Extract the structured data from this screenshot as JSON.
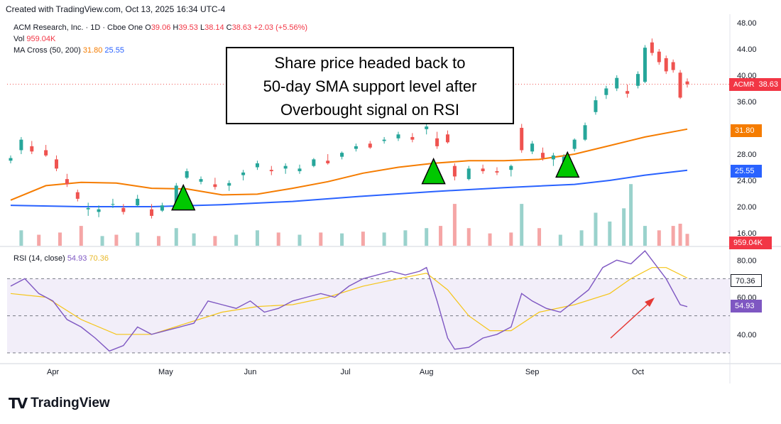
{
  "header": {
    "created_text": "Created with TradingView.com, Oct 13, 2025 16:34 UTC-4"
  },
  "legend": {
    "symbol": "ACM Research, Inc. · 1D · Cboe One",
    "o_label": "O",
    "o_value": "39.06",
    "h_label": "H",
    "h_value": "39.53",
    "l_label": "L",
    "l_value": "38.14",
    "c_label": "C",
    "c_value": "38.63",
    "change": "+2.03 (+5.56%)",
    "vol_label": "Vol",
    "vol_value": "959.04K",
    "ma_label": "MA Cross (50, 200)",
    "ma50_value": "31.80",
    "ma200_value": "25.55",
    "rsi_label": "RSI (14, close)",
    "rsi_value": "54.93",
    "rsi_ma_value": "70.36"
  },
  "annotation": {
    "text_line1": "Share price headed back to",
    "text_line2": "50-day SMA support level after",
    "text_line3": "Overbought signal on RSI"
  },
  "badges": {
    "ticker": "ACMR",
    "price": "38.63",
    "ma50": "31.80",
    "ma200": "25.55",
    "volume": "959.04K",
    "rsi_ma": "70.36",
    "rsi": "54.93"
  },
  "footer": {
    "brand": "TradingView"
  },
  "colors": {
    "up": "#26a69a",
    "down": "#ef5350",
    "ma50": "#f57c00",
    "ma200": "#2962ff",
    "rsi": "#7e57c2",
    "rsi_ma": "#f5c518",
    "arrow": "#00c800"
  },
  "chart_data": [
    {
      "type": "candlestick",
      "title": "ACM Research, Inc. · 1D · Cboe One",
      "x_labels": [
        "Apr",
        "May",
        "Jun",
        "Jul",
        "Aug",
        "Sep",
        "Oct"
      ],
      "y_ticks": [
        16,
        20,
        24,
        28,
        32,
        36,
        40,
        44,
        48
      ],
      "ylim": [
        16,
        48
      ],
      "ohlc_sampled": [
        {
          "i": 0,
          "o": 27.0,
          "h": 27.8,
          "l": 26.6,
          "c": 27.4
        },
        {
          "i": 3,
          "o": 28.6,
          "h": 30.6,
          "l": 28.0,
          "c": 30.2
        },
        {
          "i": 6,
          "o": 29.2,
          "h": 30.0,
          "l": 28.0,
          "c": 28.4
        },
        {
          "i": 10,
          "o": 28.6,
          "h": 29.4,
          "l": 27.6,
          "c": 27.8
        },
        {
          "i": 13,
          "o": 27.2,
          "h": 27.8,
          "l": 25.4,
          "c": 25.8
        },
        {
          "i": 16,
          "o": 24.2,
          "h": 25.0,
          "l": 23.0,
          "c": 23.4
        },
        {
          "i": 19,
          "o": 22.2,
          "h": 22.6,
          "l": 20.8,
          "c": 21.2
        },
        {
          "i": 22,
          "o": 19.6,
          "h": 20.6,
          "l": 18.6,
          "c": 19.8
        },
        {
          "i": 25,
          "o": 19.2,
          "h": 20.2,
          "l": 18.4,
          "c": 19.6
        },
        {
          "i": 29,
          "o": 20.4,
          "h": 21.2,
          "l": 19.8,
          "c": 20.4
        },
        {
          "i": 32,
          "o": 19.8,
          "h": 20.4,
          "l": 18.8,
          "c": 19.2
        },
        {
          "i": 36,
          "o": 20.2,
          "h": 21.8,
          "l": 20.0,
          "c": 21.2
        },
        {
          "i": 40,
          "o": 19.6,
          "h": 20.4,
          "l": 18.2,
          "c": 18.6
        },
        {
          "i": 43,
          "o": 19.4,
          "h": 20.6,
          "l": 19.2,
          "c": 20.2
        },
        {
          "i": 47,
          "o": 20.6,
          "h": 23.6,
          "l": 20.2,
          "c": 23.2
        },
        {
          "i": 50,
          "o": 24.4,
          "h": 25.8,
          "l": 24.2,
          "c": 25.4
        },
        {
          "i": 54,
          "o": 23.8,
          "h": 24.6,
          "l": 23.4,
          "c": 24.2
        },
        {
          "i": 58,
          "o": 23.4,
          "h": 24.4,
          "l": 22.6,
          "c": 23.0
        },
        {
          "i": 62,
          "o": 23.2,
          "h": 24.0,
          "l": 22.4,
          "c": 23.6
        },
        {
          "i": 66,
          "o": 24.8,
          "h": 25.6,
          "l": 24.0,
          "c": 25.2
        },
        {
          "i": 70,
          "o": 26.0,
          "h": 27.0,
          "l": 25.6,
          "c": 26.6
        },
        {
          "i": 74,
          "o": 25.6,
          "h": 26.2,
          "l": 24.8,
          "c": 25.4
        },
        {
          "i": 78,
          "o": 25.8,
          "h": 26.6,
          "l": 25.0,
          "c": 26.2
        },
        {
          "i": 82,
          "o": 25.4,
          "h": 26.4,
          "l": 25.0,
          "c": 25.8
        },
        {
          "i": 86,
          "o": 26.2,
          "h": 27.4,
          "l": 26.0,
          "c": 27.2
        },
        {
          "i": 90,
          "o": 27.0,
          "h": 28.0,
          "l": 26.4,
          "c": 26.6
        },
        {
          "i": 94,
          "o": 27.6,
          "h": 28.4,
          "l": 27.2,
          "c": 28.2
        },
        {
          "i": 98,
          "o": 28.8,
          "h": 29.6,
          "l": 28.4,
          "c": 29.2
        },
        {
          "i": 102,
          "o": 29.6,
          "h": 30.0,
          "l": 28.8,
          "c": 29.0
        },
        {
          "i": 106,
          "o": 30.0,
          "h": 30.6,
          "l": 29.6,
          "c": 30.2
        },
        {
          "i": 110,
          "o": 30.4,
          "h": 31.4,
          "l": 30.0,
          "c": 31.0
        },
        {
          "i": 114,
          "o": 30.6,
          "h": 31.2,
          "l": 29.8,
          "c": 30.2
        },
        {
          "i": 118,
          "o": 31.8,
          "h": 32.6,
          "l": 31.0,
          "c": 32.2
        },
        {
          "i": 121,
          "o": 30.4,
          "h": 31.4,
          "l": 28.8,
          "c": 29.2
        },
        {
          "i": 124,
          "o": 31.0,
          "h": 31.6,
          "l": 29.6,
          "c": 29.8
        },
        {
          "i": 126,
          "o": 26.2,
          "h": 26.6,
          "l": 24.0,
          "c": 24.6
        },
        {
          "i": 130,
          "o": 24.2,
          "h": 26.2,
          "l": 24.0,
          "c": 25.8
        },
        {
          "i": 134,
          "o": 25.8,
          "h": 26.4,
          "l": 25.0,
          "c": 25.4
        },
        {
          "i": 138,
          "o": 25.4,
          "h": 26.0,
          "l": 24.8,
          "c": 25.2
        },
        {
          "i": 142,
          "o": 25.6,
          "h": 26.4,
          "l": 24.6,
          "c": 26.2
        },
        {
          "i": 145,
          "o": 32.0,
          "h": 32.6,
          "l": 28.2,
          "c": 28.6
        },
        {
          "i": 148,
          "o": 28.4,
          "h": 30.0,
          "l": 28.0,
          "c": 29.6
        },
        {
          "i": 151,
          "o": 28.2,
          "h": 29.0,
          "l": 27.0,
          "c": 27.4
        },
        {
          "i": 154,
          "o": 27.2,
          "h": 28.2,
          "l": 26.2,
          "c": 27.8
        },
        {
          "i": 157,
          "o": 26.8,
          "h": 28.0,
          "l": 26.4,
          "c": 27.6
        },
        {
          "i": 160,
          "o": 28.8,
          "h": 30.4,
          "l": 28.4,
          "c": 30.2
        },
        {
          "i": 163,
          "o": 30.2,
          "h": 32.8,
          "l": 30.0,
          "c": 32.4
        },
        {
          "i": 166,
          "o": 34.4,
          "h": 36.8,
          "l": 34.0,
          "c": 36.2
        },
        {
          "i": 169,
          "o": 37.0,
          "h": 38.4,
          "l": 36.4,
          "c": 38.0
        },
        {
          "i": 172,
          "o": 38.0,
          "h": 40.0,
          "l": 37.6,
          "c": 39.6
        },
        {
          "i": 175,
          "o": 37.6,
          "h": 38.6,
          "l": 36.6,
          "c": 37.2
        },
        {
          "i": 178,
          "o": 38.4,
          "h": 40.6,
          "l": 38.0,
          "c": 40.2
        },
        {
          "i": 180,
          "o": 39.0,
          "h": 44.6,
          "l": 38.8,
          "c": 44.2
        },
        {
          "i": 182,
          "o": 45.0,
          "h": 45.6,
          "l": 43.0,
          "c": 43.4
        },
        {
          "i": 184,
          "o": 43.6,
          "h": 44.0,
          "l": 41.6,
          "c": 42.0
        },
        {
          "i": 186,
          "o": 42.6,
          "h": 43.0,
          "l": 40.2,
          "c": 40.6
        },
        {
          "i": 188,
          "o": 42.0,
          "h": 42.4,
          "l": 40.4,
          "c": 40.8
        },
        {
          "i": 190,
          "o": 40.4,
          "h": 40.8,
          "l": 36.4,
          "c": 36.6
        },
        {
          "i": 192,
          "o": 39.06,
          "h": 39.53,
          "l": 38.14,
          "c": 38.63
        }
      ],
      "ma50": [
        [
          0,
          21.0
        ],
        [
          10,
          23.2
        ],
        [
          20,
          23.7
        ],
        [
          30,
          23.6
        ],
        [
          40,
          22.8
        ],
        [
          50,
          22.7
        ],
        [
          60,
          21.8
        ],
        [
          70,
          21.9
        ],
        [
          80,
          22.8
        ],
        [
          90,
          23.8
        ],
        [
          100,
          25.1
        ],
        [
          110,
          26.0
        ],
        [
          120,
          26.6
        ],
        [
          130,
          27.0
        ],
        [
          140,
          27.0
        ],
        [
          150,
          27.2
        ],
        [
          160,
          28.0
        ],
        [
          170,
          29.3
        ],
        [
          180,
          30.6
        ],
        [
          192,
          31.8
        ]
      ],
      "ma200": [
        [
          0,
          20.2
        ],
        [
          20,
          20.0
        ],
        [
          40,
          20.0
        ],
        [
          60,
          20.3
        ],
        [
          80,
          20.8
        ],
        [
          100,
          21.6
        ],
        [
          120,
          22.3
        ],
        [
          140,
          22.9
        ],
        [
          160,
          23.4
        ],
        [
          170,
          24.0
        ],
        [
          180,
          24.8
        ],
        [
          192,
          25.55
        ]
      ],
      "volume_sampled": [
        {
          "i": 3,
          "v": 0.35,
          "up": true
        },
        {
          "i": 8,
          "v": 0.25,
          "up": false
        },
        {
          "i": 14,
          "v": 0.3,
          "up": false
        },
        {
          "i": 20,
          "v": 0.45,
          "up": false
        },
        {
          "i": 26,
          "v": 0.22,
          "up": true
        },
        {
          "i": 30,
          "v": 0.25,
          "up": false
        },
        {
          "i": 36,
          "v": 0.3,
          "up": true
        },
        {
          "i": 42,
          "v": 0.22,
          "up": false
        },
        {
          "i": 47,
          "v": 0.4,
          "up": true
        },
        {
          "i": 52,
          "v": 0.28,
          "up": true
        },
        {
          "i": 58,
          "v": 0.22,
          "up": false
        },
        {
          "i": 64,
          "v": 0.25,
          "up": true
        },
        {
          "i": 70,
          "v": 0.35,
          "up": true
        },
        {
          "i": 76,
          "v": 0.3,
          "up": false
        },
        {
          "i": 82,
          "v": 0.25,
          "up": true
        },
        {
          "i": 88,
          "v": 0.3,
          "up": false
        },
        {
          "i": 94,
          "v": 0.28,
          "up": true
        },
        {
          "i": 100,
          "v": 0.32,
          "up": false
        },
        {
          "i": 106,
          "v": 0.3,
          "up": true
        },
        {
          "i": 112,
          "v": 0.35,
          "up": true
        },
        {
          "i": 118,
          "v": 0.4,
          "up": true
        },
        {
          "i": 122,
          "v": 0.45,
          "up": false
        },
        {
          "i": 126,
          "v": 0.95,
          "up": false
        },
        {
          "i": 130,
          "v": 0.4,
          "up": false
        },
        {
          "i": 136,
          "v": 0.28,
          "up": false
        },
        {
          "i": 142,
          "v": 0.3,
          "up": false
        },
        {
          "i": 145,
          "v": 0.95,
          "up": true
        },
        {
          "i": 150,
          "v": 0.4,
          "up": false
        },
        {
          "i": 156,
          "v": 0.25,
          "up": true
        },
        {
          "i": 162,
          "v": 0.35,
          "up": true
        },
        {
          "i": 166,
          "v": 0.75,
          "up": true
        },
        {
          "i": 170,
          "v": 0.55,
          "up": true
        },
        {
          "i": 174,
          "v": 0.85,
          "up": true
        },
        {
          "i": 176,
          "v": 1.4,
          "up": true
        },
        {
          "i": 180,
          "v": 0.45,
          "up": true
        },
        {
          "i": 184,
          "v": 0.35,
          "up": false
        },
        {
          "i": 188,
          "v": 0.45,
          "up": false
        },
        {
          "i": 190,
          "v": 0.5,
          "up": false
        },
        {
          "i": 192,
          "v": 0.27,
          "up": false
        }
      ],
      "annotations": [
        {
          "type": "up-triangle",
          "x_index": 49,
          "price": 19.5
        },
        {
          "type": "up-triangle",
          "x_index": 120,
          "price": 23.5
        },
        {
          "type": "up-triangle",
          "x_index": 158,
          "price": 24.5
        }
      ]
    },
    {
      "type": "line",
      "title": "RSI (14, close)",
      "y_ticks": [
        40.0,
        60.0,
        80.0
      ],
      "ylim": [
        25,
        87
      ],
      "bands": [
        30,
        70
      ],
      "rsi": [
        [
          0,
          66
        ],
        [
          4,
          70
        ],
        [
          8,
          62
        ],
        [
          12,
          58
        ],
        [
          16,
          48
        ],
        [
          20,
          44
        ],
        [
          24,
          38
        ],
        [
          28,
          31
        ],
        [
          32,
          34
        ],
        [
          36,
          44
        ],
        [
          40,
          40
        ],
        [
          44,
          42
        ],
        [
          48,
          44
        ],
        [
          52,
          46
        ],
        [
          56,
          58
        ],
        [
          60,
          56
        ],
        [
          64,
          54
        ],
        [
          68,
          58
        ],
        [
          72,
          52
        ],
        [
          76,
          54
        ],
        [
          80,
          58
        ],
        [
          84,
          60
        ],
        [
          88,
          62
        ],
        [
          92,
          60
        ],
        [
          96,
          66
        ],
        [
          100,
          70
        ],
        [
          104,
          72
        ],
        [
          108,
          74
        ],
        [
          112,
          72
        ],
        [
          116,
          74
        ],
        [
          118,
          76
        ],
        [
          121,
          58
        ],
        [
          124,
          38
        ],
        [
          126,
          32
        ],
        [
          130,
          33
        ],
        [
          134,
          38
        ],
        [
          138,
          40
        ],
        [
          142,
          44
        ],
        [
          145,
          62
        ],
        [
          148,
          58
        ],
        [
          152,
          54
        ],
        [
          156,
          52
        ],
        [
          160,
          58
        ],
        [
          164,
          64
        ],
        [
          168,
          76
        ],
        [
          172,
          80
        ],
        [
          176,
          78
        ],
        [
          180,
          85
        ],
        [
          182,
          80
        ],
        [
          186,
          70
        ],
        [
          190,
          56
        ],
        [
          192,
          54.93
        ]
      ],
      "rsi_ma": [
        [
          0,
          62
        ],
        [
          10,
          60
        ],
        [
          20,
          48
        ],
        [
          30,
          40
        ],
        [
          40,
          40
        ],
        [
          50,
          46
        ],
        [
          60,
          52
        ],
        [
          70,
          55
        ],
        [
          80,
          56
        ],
        [
          90,
          60
        ],
        [
          100,
          66
        ],
        [
          110,
          70
        ],
        [
          118,
          73
        ],
        [
          124,
          64
        ],
        [
          130,
          50
        ],
        [
          136,
          42
        ],
        [
          142,
          42
        ],
        [
          150,
          52
        ],
        [
          160,
          56
        ],
        [
          170,
          62
        ],
        [
          176,
          70
        ],
        [
          182,
          76
        ],
        [
          186,
          76
        ],
        [
          192,
          70.36
        ]
      ]
    }
  ]
}
